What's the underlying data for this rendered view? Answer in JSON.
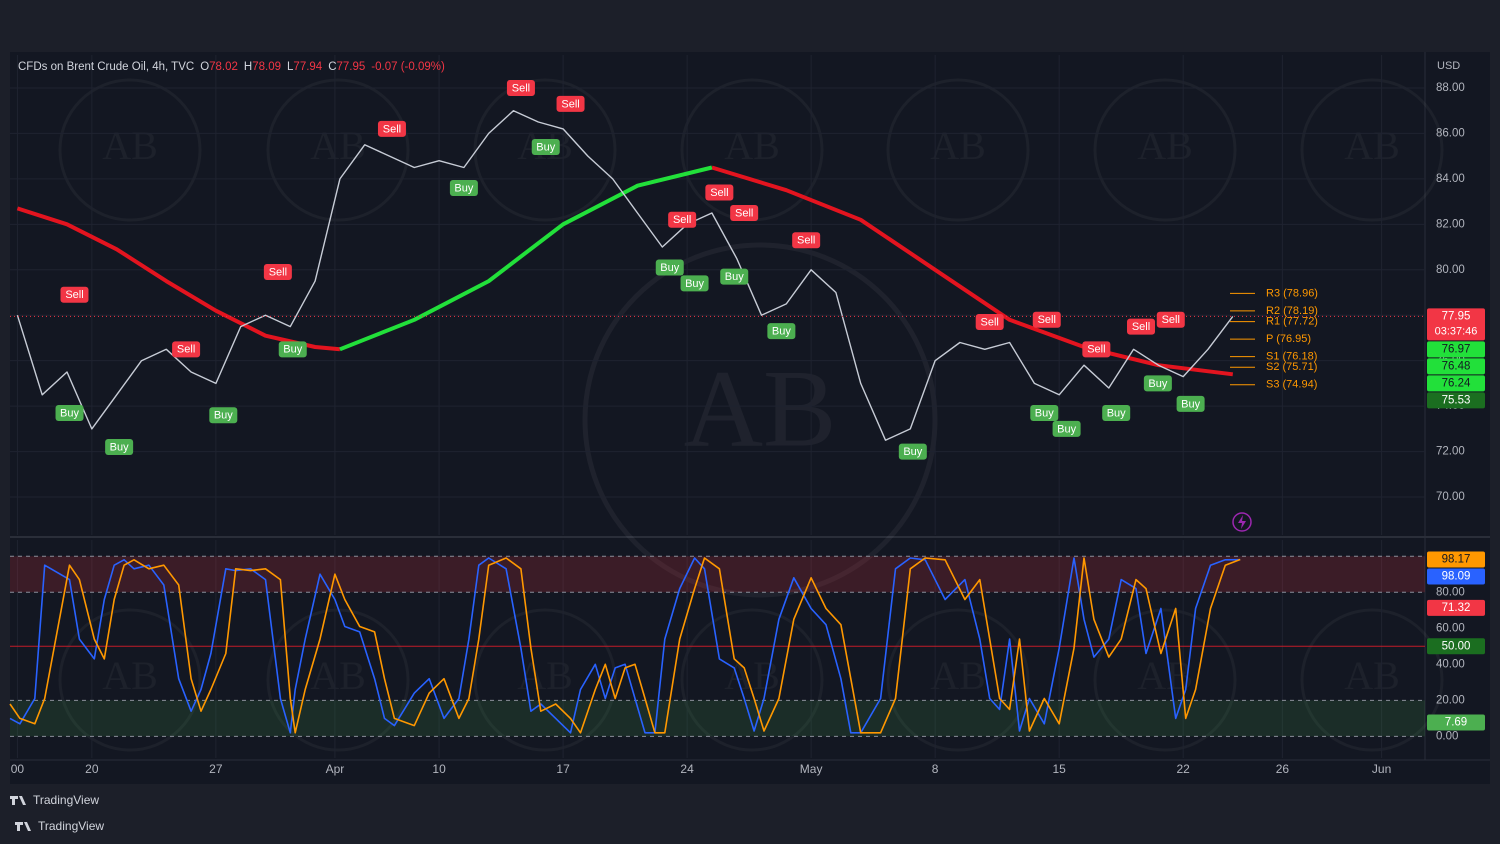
{
  "chart_data": [
    {
      "type": "line",
      "title": "CFDs on Brent Crude Oil, 4h, TVC",
      "ohlc": [
        {
          "label": "O",
          "value": 78.02,
          "color": "#f23645"
        },
        {
          "label": "H",
          "value": 78.09,
          "color": "#f23645"
        },
        {
          "label": "L",
          "value": 77.94,
          "color": "#f23645"
        },
        {
          "label": "C",
          "value": 77.95,
          "color": "#f23645"
        }
      ],
      "change": "-0.07 (-0.09%)",
      "change_color": "#f23645",
      "currency": "USD",
      "watermark": "AB",
      "xlim": [
        -3.3,
        53.75
      ],
      "ylim": [
        68.33,
        89.45
      ],
      "yticks": [
        {
          "value": 70,
          "label": "70.00"
        },
        {
          "value": 72,
          "label": "72.00"
        },
        {
          "value": 74,
          "label": "74.00"
        },
        {
          "value": 76,
          "label": "76.00"
        },
        {
          "value": 78,
          "label": "78.00"
        },
        {
          "value": 80,
          "label": "80.00"
        },
        {
          "value": 82,
          "label": "82.00"
        },
        {
          "value": 84,
          "label": "84.00"
        },
        {
          "value": 86,
          "label": "86.00"
        },
        {
          "value": 88,
          "label": "88.00"
        }
      ],
      "grid": true,
      "series": [
        {
          "color": "#c7ccd6",
          "x": [
            -3,
            -2,
            -1,
            0,
            1,
            2,
            3,
            4,
            5,
            6,
            7,
            8,
            9,
            10,
            11,
            12,
            13,
            14,
            15,
            16,
            17,
            18,
            19,
            20,
            21,
            22,
            23,
            24,
            25,
            26,
            27,
            28,
            29,
            30,
            31,
            32,
            33,
            34,
            35,
            36,
            37,
            38,
            39,
            40,
            41,
            42,
            43,
            44,
            45,
            46
          ],
          "values": [
            78,
            74.5,
            75.5,
            73,
            74.5,
            76,
            76.5,
            75.5,
            75,
            77.5,
            78,
            77.5,
            79.5,
            84,
            85.5,
            85,
            84.5,
            84.8,
            84.5,
            86,
            87,
            86.5,
            86.2,
            85,
            84,
            82.5,
            81,
            82,
            82.5,
            80.5,
            78,
            78.5,
            80,
            79,
            75,
            72.5,
            73,
            76,
            76.8,
            76.5,
            76.8,
            75,
            74.5,
            75.8,
            74.8,
            76.5,
            75.8,
            75.3,
            76.5,
            77.95
          ]
        }
      ],
      "moving_average": {
        "x": [
          -3,
          -1,
          1,
          3,
          5,
          7,
          9,
          10,
          13,
          16,
          19,
          22,
          25,
          28,
          31,
          34,
          37,
          40,
          43,
          46
        ],
        "segments": [
          {
            "color": "#e3141f",
            "values": [
              82.7,
              82.0,
              80.9,
              79.5,
              78.2,
              77.1,
              76.6,
              76.5,
              null,
              null,
              null,
              null,
              84.5,
              83.5,
              82.2,
              80.0,
              77.8,
              76.6,
              75.8,
              75.4
            ]
          },
          {
            "color": "#22e03a",
            "values": [
              null,
              null,
              null,
              null,
              null,
              null,
              null,
              76.5,
              77.8,
              79.5,
              82.0,
              83.7,
              84.5,
              null,
              null,
              null,
              null,
              null,
              null,
              null
            ]
          }
        ]
      },
      "signals": [
        {
          "label": "Sell",
          "x": -0.7,
          "value": 78.9,
          "color": "#f23645"
        },
        {
          "label": "Buy",
          "x": -0.9,
          "value": 73.7,
          "color": "#4caf50"
        },
        {
          "label": "Buy",
          "x": 1.1,
          "value": 72.2,
          "color": "#4caf50"
        },
        {
          "label": "Sell",
          "x": 3.8,
          "value": 76.5,
          "color": "#f23645"
        },
        {
          "label": "Buy",
          "x": 5.3,
          "value": 73.6,
          "color": "#4caf50"
        },
        {
          "label": "Sell",
          "x": 7.5,
          "value": 79.9,
          "color": "#f23645"
        },
        {
          "label": "Buy",
          "x": 8.1,
          "value": 76.5,
          "color": "#4caf50"
        },
        {
          "label": "Sell",
          "x": 12.1,
          "value": 86.2,
          "color": "#f23645"
        },
        {
          "label": "Buy",
          "x": 15,
          "value": 83.6,
          "color": "#4caf50"
        },
        {
          "label": "Sell",
          "x": 17.3,
          "value": 88.0,
          "color": "#f23645"
        },
        {
          "label": "Buy",
          "x": 18.3,
          "value": 85.4,
          "color": "#4caf50"
        },
        {
          "label": "Sell",
          "x": 19.3,
          "value": 87.3,
          "color": "#f23645"
        },
        {
          "label": "Buy",
          "x": 23.3,
          "value": 80.1,
          "color": "#4caf50"
        },
        {
          "label": "Sell",
          "x": 23.8,
          "value": 82.2,
          "color": "#f23645"
        },
        {
          "label": "Buy",
          "x": 24.3,
          "value": 79.4,
          "color": "#4caf50"
        },
        {
          "label": "Sell",
          "x": 25.3,
          "value": 83.4,
          "color": "#f23645"
        },
        {
          "label": "Buy",
          "x": 25.9,
          "value": 79.7,
          "color": "#4caf50"
        },
        {
          "label": "Sell",
          "x": 26.3,
          "value": 82.5,
          "color": "#f23645"
        },
        {
          "label": "Buy",
          "x": 27.8,
          "value": 77.3,
          "color": "#4caf50"
        },
        {
          "label": "Sell",
          "x": 28.8,
          "value": 81.3,
          "color": "#f23645"
        },
        {
          "label": "Buy",
          "x": 33.1,
          "value": 72.0,
          "color": "#4caf50"
        },
        {
          "label": "Sell",
          "x": 36.2,
          "value": 77.7,
          "color": "#f23645"
        },
        {
          "label": "Buy",
          "x": 38.4,
          "value": 73.7,
          "color": "#4caf50"
        },
        {
          "label": "Sell",
          "x": 38.5,
          "value": 77.8,
          "color": "#f23645"
        },
        {
          "label": "Buy",
          "x": 39.3,
          "value": 73.0,
          "color": "#4caf50"
        },
        {
          "label": "Sell",
          "x": 40.5,
          "value": 76.5,
          "color": "#f23645"
        },
        {
          "label": "Buy",
          "x": 41.3,
          "value": 73.7,
          "color": "#4caf50"
        },
        {
          "label": "Sell",
          "x": 42.3,
          "value": 77.5,
          "color": "#f23645"
        },
        {
          "label": "Buy",
          "x": 42.98,
          "value": 75.0,
          "color": "#4caf50"
        },
        {
          "label": "Sell",
          "x": 43.5,
          "value": 77.8,
          "color": "#f23645"
        },
        {
          "label": "Buy",
          "x": 44.3,
          "value": 74.1,
          "color": "#4caf50"
        }
      ],
      "pivots": [
        {
          "label": "R3 (78.96)",
          "value": 78.96
        },
        {
          "label": "R2 (78.19)",
          "value": 78.19
        },
        {
          "label": "R1 (77.72)",
          "value": 77.72
        },
        {
          "label": "P (76.95)",
          "value": 76.95
        },
        {
          "label": "S1 (76.18)",
          "value": 76.18
        },
        {
          "label": "S2 (75.71)",
          "value": 75.71
        },
        {
          "label": "S3 (74.94)",
          "value": 74.94
        }
      ],
      "pivot_color": "#ff9800",
      "price_tags": [
        {
          "value": 77.95,
          "color": "#f23645"
        },
        {
          "value": 76.97,
          "color": "#22e03a",
          "text_color": "#131722"
        },
        {
          "value": 76.48,
          "color": "#22e03a",
          "text_color": "#131722"
        },
        {
          "value": 76.24,
          "color": "#22e03a",
          "text_color": "#131722"
        },
        {
          "value": 75.53,
          "color": "#1b6e20"
        }
      ],
      "countdown": "03:37:46"
    },
    {
      "type": "line",
      "xlim": [
        -3.3,
        53.75
      ],
      "ylim": [
        -12,
        109
      ],
      "yticks": [
        {
          "value": 0,
          "label": "0.00"
        },
        {
          "value": 20,
          "label": "20.00"
        },
        {
          "value": 40,
          "label": "40.00"
        },
        {
          "value": 60,
          "label": "60.00"
        },
        {
          "value": 80,
          "label": "80.00"
        }
      ],
      "grid": false,
      "xticks": [
        {
          "value": -3,
          "label": "00"
        },
        {
          "value": 0,
          "label": "20"
        },
        {
          "value": 5,
          "label": "27"
        },
        {
          "value": 9.8,
          "label": "Apr"
        },
        {
          "value": 14,
          "label": "10"
        },
        {
          "value": 19,
          "label": "17"
        },
        {
          "value": 24,
          "label": "24"
        },
        {
          "value": 29,
          "label": "May"
        },
        {
          "value": 34,
          "label": "8"
        },
        {
          "value": 39,
          "label": "15"
        },
        {
          "value": 44,
          "label": "22"
        },
        {
          "value": 48,
          "label": "26"
        },
        {
          "value": 52,
          "label": "Jun"
        }
      ],
      "bands": [
        {
          "from": 80,
          "to": 100,
          "color": "rgba(242,54,69,0.18)"
        },
        {
          "from": 0,
          "to": 20,
          "color": "rgba(76,175,80,0.15)"
        }
      ],
      "levels": [
        {
          "value": 100,
          "color": "#8a8e99",
          "dash": true
        },
        {
          "value": 80,
          "color": "#8a8e99",
          "dash": true
        },
        {
          "value": 50,
          "color": "#c21c28",
          "dash": false
        },
        {
          "value": 20,
          "color": "#8a8e99",
          "dash": true
        },
        {
          "value": 0,
          "color": "#8a8e99",
          "dash": true
        }
      ],
      "series": [
        {
          "color": "#2962ff",
          "x": [
            -3.3,
            -2.9,
            -2.3,
            -1.9,
            -0.9,
            -0.5,
            0.1,
            0.5,
            0.9,
            1.3,
            1.7,
            2.3,
            2.9,
            3.5,
            4.0,
            4.4,
            4.8,
            5.4,
            5.8,
            6.4,
            7.0,
            7.6,
            8.0,
            8.2,
            8.6,
            9.2,
            9.8,
            10.2,
            10.8,
            11.4,
            11.8,
            12.2,
            13.0,
            13.6,
            14.2,
            14.8,
            15.2,
            15.6,
            16.0,
            16.7,
            17.3,
            17.7,
            18.1,
            18.7,
            19.3,
            19.7,
            20.3,
            20.7,
            21.1,
            21.5,
            21.9,
            22.3,
            22.7,
            23.1,
            23.7,
            24.3,
            24.7,
            25.3,
            25.9,
            26.3,
            26.7,
            27.1,
            27.7,
            28.3,
            29.0,
            29.6,
            30.2,
            30.6,
            31.0,
            31.8,
            32.4,
            33.0,
            33.6,
            34.4,
            35.2,
            35.8,
            36.2,
            36.6,
            37.0,
            37.4,
            37.8,
            38.4,
            39.0,
            39.6,
            40.0,
            40.4,
            41.0,
            41.5,
            42.1,
            42.5,
            43.1,
            43.7,
            44.1,
            44.5,
            45.1,
            45.7,
            46.3
          ],
          "values": [
            10,
            7,
            21,
            95,
            87,
            54,
            43,
            76,
            95,
            98,
            93,
            95,
            84,
            32,
            14,
            26,
            46,
            93,
            92,
            93,
            87,
            21,
            2,
            26,
            54,
            90,
            76,
            61,
            58,
            32,
            10,
            6,
            24,
            32,
            10,
            21,
            54,
            95,
            99,
            93,
            49,
            14,
            18,
            10,
            2,
            26,
            40,
            21,
            38,
            40,
            21,
            2,
            2,
            54,
            82,
            99,
            93,
            43,
            38,
            21,
            3,
            21,
            65,
            88,
            71,
            62,
            32,
            2,
            2,
            21,
            93,
            99,
            98,
            76,
            87,
            54,
            21,
            15,
            54,
            3,
            21,
            7,
            49,
            99,
            65,
            44,
            54,
            87,
            82,
            46,
            71,
            10,
            26,
            71,
            95,
            98,
            98.09
          ]
        },
        {
          "color": "#ff9800",
          "x": [
            -3.3,
            -2.9,
            -2.3,
            -1.9,
            -0.9,
            -0.5,
            0.1,
            0.5,
            0.9,
            1.3,
            1.7,
            2.3,
            2.9,
            3.5,
            4.0,
            4.4,
            4.8,
            5.4,
            5.8,
            6.4,
            7.0,
            7.6,
            8.0,
            8.2,
            8.6,
            9.2,
            9.8,
            10.2,
            10.8,
            11.4,
            11.8,
            12.2,
            13.0,
            13.6,
            14.2,
            14.8,
            15.2,
            15.6,
            16.0,
            16.7,
            17.3,
            17.7,
            18.1,
            18.7,
            19.3,
            19.7,
            20.3,
            20.7,
            21.1,
            21.5,
            21.9,
            22.3,
            22.7,
            23.1,
            23.7,
            24.3,
            24.7,
            25.3,
            25.9,
            26.3,
            26.7,
            27.1,
            27.7,
            28.3,
            29.0,
            29.6,
            30.2,
            30.6,
            31.0,
            31.8,
            32.4,
            33.0,
            33.6,
            34.4,
            35.2,
            35.8,
            36.2,
            36.6,
            37.0,
            37.4,
            37.8,
            38.4,
            39.0,
            39.6,
            40.0,
            40.4,
            41.0,
            41.5,
            42.1,
            42.5,
            43.1,
            43.7,
            44.1,
            44.5,
            45.1,
            45.7,
            46.3
          ],
          "values": [
            18,
            10,
            7,
            21,
            95,
            87,
            54,
            43,
            76,
            95,
            98,
            93,
            95,
            84,
            32,
            14,
            26,
            46,
            93,
            92,
            93,
            87,
            21,
            2,
            26,
            54,
            90,
            76,
            61,
            58,
            32,
            10,
            6,
            24,
            32,
            10,
            21,
            54,
            95,
            99,
            93,
            49,
            14,
            18,
            10,
            2,
            26,
            40,
            21,
            38,
            40,
            21,
            2,
            2,
            54,
            82,
            99,
            93,
            43,
            38,
            21,
            3,
            21,
            65,
            88,
            71,
            62,
            32,
            2,
            2,
            21,
            93,
            99,
            98,
            76,
            87,
            54,
            21,
            15,
            54,
            3,
            21,
            7,
            49,
            99,
            65,
            44,
            54,
            87,
            82,
            46,
            71,
            10,
            26,
            71,
            95,
            98.17
          ]
        }
      ],
      "price_tags": [
        {
          "value": 98.17,
          "color": "#ff9800",
          "text_color": "#131722"
        },
        {
          "value": 98.09,
          "color": "#2962ff"
        },
        {
          "value": 71.32,
          "color": "#f23645"
        },
        {
          "value": 50,
          "label": "50.00",
          "color": "#1b6e20"
        },
        {
          "value": 7.69,
          "color": "#4caf50"
        }
      ]
    }
  ],
  "branding": [
    "TradingView",
    "TradingView"
  ]
}
